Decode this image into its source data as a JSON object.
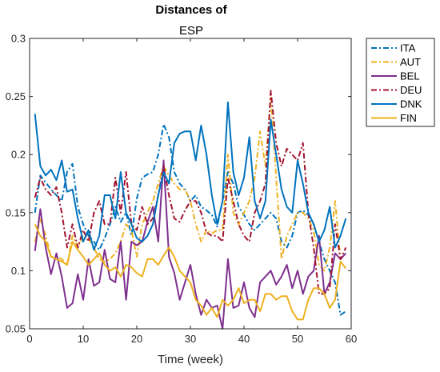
{
  "chart_data": {
    "type": "line",
    "title": "Distances of",
    "subtitle": "ESP",
    "xlabel": "Time (week)",
    "ylabel": "",
    "xlim": [
      0,
      60
    ],
    "ylim": [
      0.05,
      0.3
    ],
    "xticks": [
      "0",
      "10",
      "20",
      "30",
      "40",
      "50",
      "60"
    ],
    "yticks": [
      "0.05",
      "0.1",
      "0.15",
      "0.2",
      "0.25",
      "0.3"
    ],
    "grid": false,
    "legend_position": "outside-right",
    "x": [
      1,
      2,
      3,
      4,
      5,
      6,
      7,
      8,
      9,
      10,
      11,
      12,
      13,
      14,
      15,
      16,
      17,
      18,
      19,
      20,
      21,
      22,
      23,
      24,
      25,
      26,
      27,
      28,
      29,
      30,
      31,
      32,
      33,
      34,
      35,
      36,
      37,
      38,
      39,
      40,
      41,
      42,
      43,
      44,
      45,
      46,
      47,
      48,
      49,
      50,
      51,
      52,
      53,
      54,
      55,
      56,
      57,
      58,
      59
    ],
    "series": [
      {
        "name": "ITA",
        "color": "#0072BD",
        "dash": "dashdot",
        "values": [
          0.15,
          0.182,
          0.176,
          0.17,
          0.165,
          0.16,
          0.185,
          0.192,
          0.155,
          0.14,
          0.13,
          0.125,
          0.118,
          0.128,
          0.14,
          0.155,
          0.142,
          0.15,
          0.13,
          0.162,
          0.18,
          0.183,
          0.185,
          0.2,
          0.226,
          0.215,
          0.185,
          0.175,
          0.17,
          0.16,
          0.165,
          0.155,
          0.152,
          0.148,
          0.138,
          0.16,
          0.185,
          0.175,
          0.155,
          0.148,
          0.14,
          0.135,
          0.14,
          0.145,
          0.15,
          0.145,
          0.125,
          0.12,
          0.13,
          0.15,
          0.152,
          0.148,
          0.14,
          0.125,
          0.11,
          0.1,
          0.09,
          0.062,
          0.065
        ]
      },
      {
        "name": "AUT",
        "color": "#EDB120",
        "dash": "dashdot",
        "values": [
          0.125,
          0.145,
          0.13,
          0.112,
          0.112,
          0.11,
          0.105,
          0.13,
          0.12,
          0.13,
          0.128,
          0.12,
          0.11,
          0.108,
          0.11,
          0.115,
          0.125,
          0.14,
          0.135,
          0.112,
          0.14,
          0.15,
          0.16,
          0.175,
          0.19,
          0.182,
          0.175,
          0.17,
          0.17,
          0.16,
          0.14,
          0.125,
          0.135,
          0.132,
          0.135,
          0.135,
          0.2,
          0.15,
          0.14,
          0.15,
          0.16,
          0.18,
          0.22,
          0.19,
          0.25,
          0.18,
          0.11,
          0.13,
          0.14,
          0.15,
          0.15,
          0.145,
          0.135,
          0.105,
          0.1,
          0.12,
          0.16,
          0.11,
          0.115
        ]
      },
      {
        "name": "BEL",
        "color": "#7E2F8E",
        "dash": "solid",
        "values": [
          0.117,
          0.153,
          0.12,
          0.097,
          0.115,
          0.095,
          0.068,
          0.072,
          0.097,
          0.075,
          0.11,
          0.087,
          0.09,
          0.118,
          0.093,
          0.09,
          0.125,
          0.075,
          0.125,
          0.122,
          0.125,
          0.142,
          0.155,
          0.125,
          0.195,
          0.112,
          0.098,
          0.075,
          0.09,
          0.105,
          0.08,
          0.062,
          0.075,
          0.068,
          0.07,
          0.05,
          0.11,
          0.068,
          0.07,
          0.09,
          0.068,
          0.06,
          0.09,
          0.095,
          0.1,
          0.088,
          0.095,
          0.105,
          0.085,
          0.1,
          0.08,
          0.095,
          0.1,
          0.13,
          0.08,
          0.09,
          0.115,
          0.11,
          0.115
        ]
      },
      {
        "name": "DEU",
        "color": "#A2142F",
        "dash": "dashdot",
        "values": [
          0.163,
          0.18,
          0.17,
          0.165,
          0.172,
          0.15,
          0.12,
          0.14,
          0.12,
          0.135,
          0.125,
          0.15,
          0.16,
          0.14,
          0.14,
          0.18,
          0.15,
          0.185,
          0.14,
          0.135,
          0.155,
          0.14,
          0.145,
          0.165,
          0.19,
          0.165,
          0.145,
          0.142,
          0.152,
          0.16,
          0.16,
          0.15,
          0.133,
          0.13,
          0.13,
          0.125,
          0.18,
          0.16,
          0.14,
          0.13,
          0.125,
          0.15,
          0.16,
          0.175,
          0.255,
          0.21,
          0.19,
          0.205,
          0.2,
          0.195,
          0.21,
          0.15,
          0.12,
          0.08,
          0.08,
          0.085,
          0.14,
          0.11,
          0.12
        ]
      },
      {
        "name": "DNK",
        "color": "#0072BD",
        "dash": "solid",
        "values": [
          0.235,
          0.19,
          0.182,
          0.187,
          0.178,
          0.195,
          0.168,
          0.17,
          0.145,
          0.125,
          0.135,
          0.118,
          0.13,
          0.165,
          0.165,
          0.145,
          0.185,
          0.15,
          0.14,
          0.128,
          0.125,
          0.13,
          0.14,
          0.165,
          0.185,
          0.175,
          0.21,
          0.218,
          0.22,
          0.22,
          0.195,
          0.225,
          0.2,
          0.165,
          0.14,
          0.16,
          0.245,
          0.185,
          0.165,
          0.18,
          0.215,
          0.16,
          0.145,
          0.16,
          0.23,
          0.2,
          0.17,
          0.155,
          0.15,
          0.195,
          0.175,
          0.15,
          0.14,
          0.125,
          0.135,
          0.155,
          0.12,
          0.13,
          0.145
        ]
      },
      {
        "name": "FIN",
        "color": "#EDB120",
        "dash": "solid",
        "values": [
          0.14,
          0.13,
          0.125,
          0.112,
          0.11,
          0.108,
          0.105,
          0.125,
          0.118,
          0.112,
          0.105,
          0.11,
          0.115,
          0.105,
          0.1,
          0.103,
          0.095,
          0.105,
          0.103,
          0.098,
          0.095,
          0.11,
          0.11,
          0.105,
          0.113,
          0.12,
          0.112,
          0.1,
          0.095,
          0.09,
          0.075,
          0.07,
          0.062,
          0.068,
          0.06,
          0.075,
          0.07,
          0.075,
          0.085,
          0.072,
          0.075,
          0.075,
          0.065,
          0.08,
          0.08,
          0.075,
          0.078,
          0.078,
          0.065,
          0.058,
          0.058,
          0.075,
          0.085,
          0.085,
          0.08,
          0.068,
          0.075,
          0.108,
          0.102
        ]
      }
    ]
  }
}
